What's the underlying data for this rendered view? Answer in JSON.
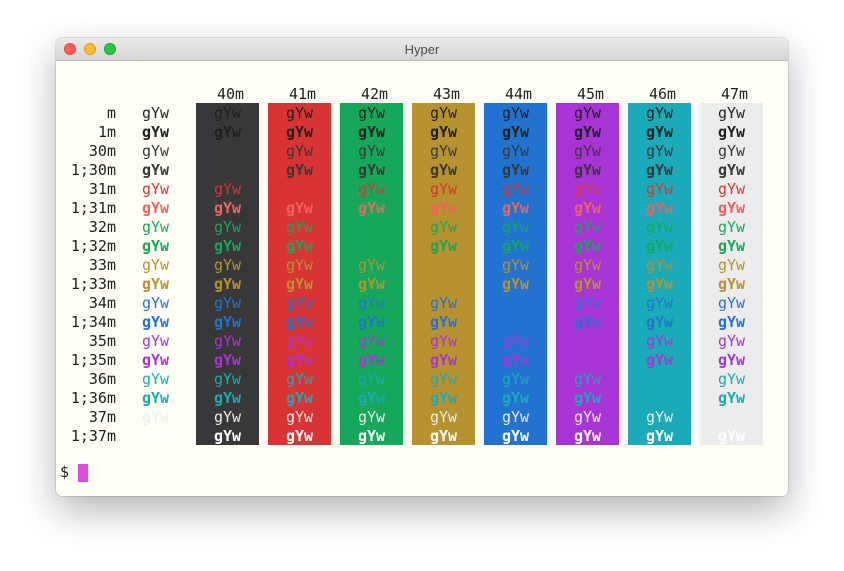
{
  "window": {
    "title": "Hyper"
  },
  "sample_text": "gYw",
  "prompt": "$",
  "backgrounds": [
    {
      "label": "40m",
      "color": "#383838"
    },
    {
      "label": "41m",
      "color": "#d93434"
    },
    {
      "label": "42m",
      "color": "#16a85a"
    },
    {
      "label": "43m",
      "color": "#b7922f"
    },
    {
      "label": "44m",
      "color": "#2273d0"
    },
    {
      "label": "45m",
      "color": "#a934d5"
    },
    {
      "label": "46m",
      "color": "#1aaab8"
    },
    {
      "label": "47m",
      "color": "#ececec"
    }
  ],
  "rows": [
    {
      "label": "m",
      "fg": "#1f1f1f",
      "bold": false
    },
    {
      "label": "1m",
      "fg": "#1f1f1f",
      "bold": true
    },
    {
      "label": "30m",
      "fg": "#383838",
      "bold": false
    },
    {
      "label": "1;30m",
      "fg": "#383838",
      "bold": true
    },
    {
      "label": "31m",
      "fg": "#d93434",
      "bold": false
    },
    {
      "label": "1;31m",
      "fg": "#f0625f",
      "bold": true
    },
    {
      "label": "32m",
      "fg": "#16a85a",
      "bold": false
    },
    {
      "label": "1;32m",
      "fg": "#16a85a",
      "bold": true
    },
    {
      "label": "33m",
      "fg": "#b7922f",
      "bold": false
    },
    {
      "label": "1;33m",
      "fg": "#b7922f",
      "bold": true
    },
    {
      "label": "34m",
      "fg": "#2273d0",
      "bold": false
    },
    {
      "label": "1;34m",
      "fg": "#2273d0",
      "bold": true
    },
    {
      "label": "35m",
      "fg": "#a934d5",
      "bold": false
    },
    {
      "label": "1;35m",
      "fg": "#a934d5",
      "bold": true
    },
    {
      "label": "36m",
      "fg": "#1aaab8",
      "bold": false
    },
    {
      "label": "1;36m",
      "fg": "#1aaab8",
      "bold": true
    },
    {
      "label": "37m",
      "fg": "#ececec",
      "bold": false
    },
    {
      "label": "1;37m",
      "fg": "#ffffff",
      "bold": true
    }
  ],
  "default_fg_on_bg": {
    "40m": "#1f1f1f",
    "41m": "#1f1f1f",
    "42m": "#1f1f1f",
    "43m": "#1f1f1f",
    "44m": "#1f1f1f",
    "45m": "#1f1f1f",
    "46m": "#1f1f1f",
    "47m": "#1f1f1f"
  },
  "white_on_bg": "#ffffff",
  "grey_on_bg": "#ececec"
}
